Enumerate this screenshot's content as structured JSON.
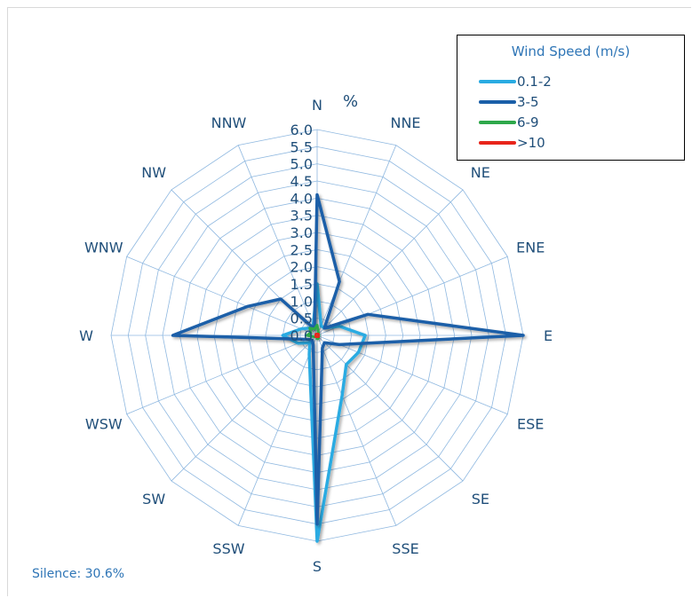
{
  "chart_data": {
    "type": "radar",
    "unit_label": "%",
    "directions": [
      "N",
      "NNE",
      "NE",
      "ENE",
      "E",
      "ESE",
      "SE",
      "SSE",
      "S",
      "SSW",
      "SW",
      "WSW",
      "W",
      "WNW",
      "NW",
      "NNW"
    ],
    "tick_labels": [
      "0.0",
      "0.5",
      "1.0",
      "1.5",
      "2.0",
      "2.5",
      "3.0",
      "3.5",
      "4.0",
      "4.5",
      "5.0",
      "5.5",
      "6.0"
    ],
    "rmax": 6.0,
    "legend_title": "Wind Speed (m/s)",
    "series": [
      {
        "name": "0.1-2",
        "color": "#29abe2",
        "values": [
          1.5,
          0.3,
          0.3,
          0.7,
          1.4,
          1.3,
          1.2,
          1.9,
          6.0,
          0.6,
          0.3,
          0.6,
          1.0,
          0.5,
          0.3,
          0.3
        ]
      },
      {
        "name": "3-5",
        "color": "#1a5fa8",
        "values": [
          4.1,
          1.7,
          0.3,
          1.6,
          6.0,
          0.7,
          0.3,
          0.4,
          5.5,
          0.3,
          0.2,
          0.3,
          4.2,
          2.2,
          1.5,
          0.2
        ]
      },
      {
        "name": "6-9",
        "color": "#2ea84a",
        "values": [
          0.3,
          0.1,
          0.05,
          0.05,
          0.05,
          0.05,
          0.05,
          0.1,
          0.1,
          0.05,
          0.05,
          0.1,
          0.3,
          0.2,
          0.3,
          0.2
        ]
      },
      {
        "name": ">10",
        "color": "#e8251b",
        "values": [
          0.05,
          0.05,
          0.05,
          0.05,
          0.05,
          0.05,
          0.05,
          0.05,
          0.05,
          0.05,
          0.05,
          0.05,
          0.05,
          0.05,
          0.05,
          0.05
        ]
      }
    ]
  },
  "footer": {
    "silence": "Silence: 30.6%"
  }
}
